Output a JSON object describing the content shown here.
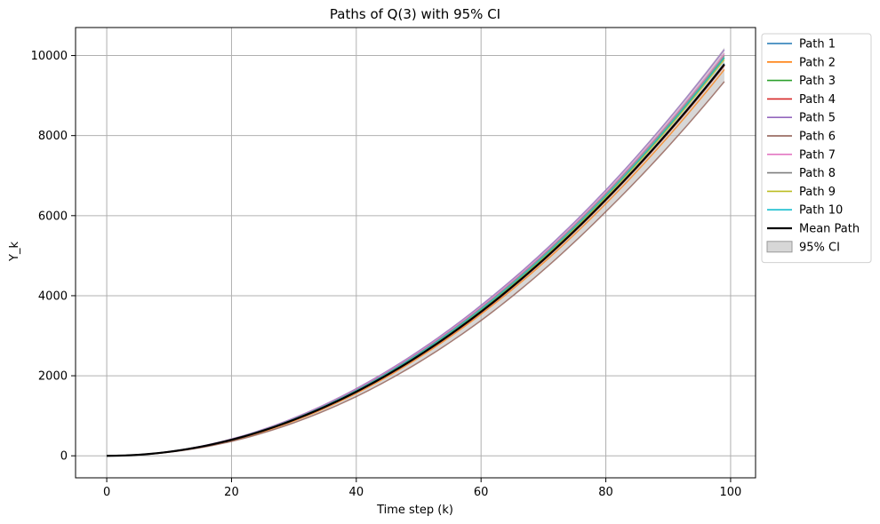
{
  "chart_data": {
    "type": "line",
    "title": "Paths of Q(3) with 95% CI",
    "xlabel": "Time step (k)",
    "ylabel": "Y_k",
    "xlim": [
      -5,
      104
    ],
    "ylim": [
      -550,
      10700
    ],
    "xticks": [
      0,
      20,
      40,
      60,
      80,
      100
    ],
    "yticks": [
      0,
      2000,
      4000,
      6000,
      8000,
      10000
    ],
    "grid": true,
    "legend_position": "outside right, top",
    "x_range": [
      0,
      99
    ],
    "series": [
      {
        "name": "Path 1",
        "color": "#1f77b4",
        "x": [
          0,
          20,
          40,
          60,
          80,
          99
        ],
        "values": [
          0,
          400,
          1600,
          3600,
          6400,
          9800
        ]
      },
      {
        "name": "Path 2",
        "color": "#ff7f0e",
        "x": [
          0,
          20,
          40,
          60,
          80,
          99
        ],
        "values": [
          0,
          380,
          1560,
          3540,
          6300,
          9650
        ]
      },
      {
        "name": "Path 3",
        "color": "#2ca02c",
        "x": [
          0,
          20,
          40,
          60,
          80,
          99
        ],
        "values": [
          0,
          405,
          1620,
          3650,
          6480,
          9950
        ]
      },
      {
        "name": "Path 4",
        "color": "#d62728",
        "x": [
          0,
          20,
          40,
          60,
          80,
          99
        ],
        "values": [
          0,
          395,
          1590,
          3580,
          6380,
          9750
        ]
      },
      {
        "name": "Path 5",
        "color": "#9467bd",
        "x": [
          0,
          20,
          40,
          60,
          80,
          99
        ],
        "values": [
          0,
          420,
          1680,
          3760,
          6640,
          10150
        ]
      },
      {
        "name": "Path 6",
        "color": "#8c564b",
        "x": [
          0,
          20,
          40,
          60,
          80,
          99
        ],
        "values": [
          0,
          360,
          1480,
          3380,
          6100,
          9350
        ]
      },
      {
        "name": "Path 7",
        "color": "#e377c2",
        "x": [
          0,
          20,
          40,
          60,
          80,
          99
        ],
        "values": [
          0,
          415,
          1660,
          3720,
          6580,
          10050
        ]
      },
      {
        "name": "Path 8",
        "color": "#7f7f7f",
        "x": [
          0,
          20,
          40,
          60,
          80,
          99
        ],
        "values": [
          0,
          410,
          1640,
          3690,
          6540,
          10000
        ]
      },
      {
        "name": "Path 9",
        "color": "#bcbd22",
        "x": [
          0,
          20,
          40,
          60,
          80,
          99
        ],
        "values": [
          0,
          402,
          1615,
          3640,
          6460,
          9900
        ]
      },
      {
        "name": "Path 10",
        "color": "#17becf",
        "x": [
          0,
          20,
          40,
          60,
          80,
          99
        ],
        "values": [
          0,
          408,
          1630,
          3660,
          6500,
          9950
        ]
      },
      {
        "name": "Mean Path",
        "color": "#000000",
        "x": [
          0,
          20,
          40,
          60,
          80,
          99
        ],
        "values": [
          0,
          400,
          1600,
          3600,
          6400,
          9780
        ]
      }
    ],
    "ci": {
      "name": "95% CI",
      "color": "#bdbdbd",
      "x": [
        0,
        20,
        40,
        60,
        80,
        99
      ],
      "lower": [
        0,
        360,
        1480,
        3380,
        6100,
        9350
      ],
      "upper": [
        0,
        425,
        1690,
        3780,
        6660,
        10200
      ]
    }
  }
}
